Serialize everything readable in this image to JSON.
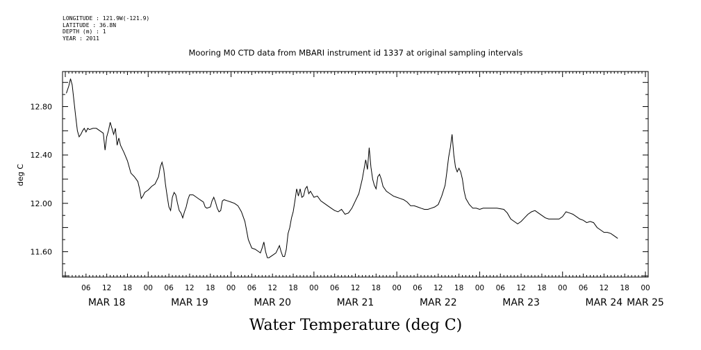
{
  "metadata": {
    "longitude": "LONGITUDE : 121.9W(-121.9)",
    "latitude": "LATITUDE : 36.8N",
    "depth": "DEPTH (m) : 1",
    "year": "YEAR : 2011"
  },
  "chart_data": {
    "type": "line",
    "title": "Mooring M0 CTD data from MBARI instrument id 1337 at original sampling intervals",
    "xlabel": "Water Temperature (deg C)",
    "ylabel": "deg C",
    "y_ticks": [
      "11.60",
      "12.00",
      "12.40",
      "12.80"
    ],
    "ylim": [
      11.39,
      13.09
    ],
    "xlim_hours": [
      0,
      168
    ],
    "x_hour_labels": [
      "06",
      "12",
      "18",
      "00",
      "06",
      "12",
      "18",
      "00",
      "06",
      "12",
      "18",
      "00",
      "06",
      "12",
      "18",
      "00",
      "06",
      "12",
      "18",
      "00",
      "06",
      "12",
      "18",
      "00",
      "06",
      "12",
      "18",
      "00"
    ],
    "x_date_labels": [
      "MAR 18",
      "MAR 19",
      "MAR 20",
      "MAR 21",
      "MAR 22",
      "MAR 23",
      "MAR 24",
      "MAR 25"
    ],
    "series": [
      {
        "values": [
          [
            0.3,
            12.91
          ],
          [
            1.0,
            12.97
          ],
          [
            1.5,
            13.03
          ],
          [
            2.0,
            12.98
          ],
          [
            2.5,
            12.85
          ],
          [
            3.0,
            12.72
          ],
          [
            3.5,
            12.6
          ],
          [
            4.0,
            12.55
          ],
          [
            4.5,
            12.57
          ],
          [
            5.0,
            12.6
          ],
          [
            5.5,
            12.62
          ],
          [
            6.0,
            12.59
          ],
          [
            6.5,
            12.62
          ],
          [
            7.0,
            12.61
          ],
          [
            8.0,
            12.62
          ],
          [
            9.0,
            12.62
          ],
          [
            10.0,
            12.6
          ],
          [
            11.0,
            12.58
          ],
          [
            11.5,
            12.44
          ],
          [
            12.0,
            12.55
          ],
          [
            12.5,
            12.6
          ],
          [
            13.0,
            12.67
          ],
          [
            13.5,
            12.62
          ],
          [
            14.0,
            12.57
          ],
          [
            14.5,
            12.62
          ],
          [
            15.0,
            12.48
          ],
          [
            15.5,
            12.54
          ],
          [
            16.0,
            12.48
          ],
          [
            17.0,
            12.42
          ],
          [
            18.0,
            12.35
          ],
          [
            19.0,
            12.25
          ],
          [
            20.0,
            12.22
          ],
          [
            21.0,
            12.18
          ],
          [
            21.5,
            12.12
          ],
          [
            22.0,
            12.04
          ],
          [
            22.5,
            12.06
          ],
          [
            23.0,
            12.09
          ],
          [
            24.0,
            12.11
          ],
          [
            25.0,
            12.14
          ],
          [
            26.0,
            12.16
          ],
          [
            27.0,
            12.22
          ],
          [
            27.5,
            12.3
          ],
          [
            28.0,
            12.34
          ],
          [
            28.5,
            12.28
          ],
          [
            29.0,
            12.16
          ],
          [
            29.5,
            12.06
          ],
          [
            30.0,
            11.97
          ],
          [
            30.5,
            11.94
          ],
          [
            31.0,
            12.05
          ],
          [
            31.5,
            12.09
          ],
          [
            32.0,
            12.07
          ],
          [
            32.5,
            12.0
          ],
          [
            33.0,
            11.94
          ],
          [
            33.5,
            11.92
          ],
          [
            34.0,
            11.88
          ],
          [
            34.5,
            11.93
          ],
          [
            35.0,
            11.97
          ],
          [
            35.5,
            12.03
          ],
          [
            36.0,
            12.07
          ],
          [
            37.0,
            12.07
          ],
          [
            38.0,
            12.05
          ],
          [
            39.0,
            12.03
          ],
          [
            40.0,
            12.01
          ],
          [
            40.5,
            11.97
          ],
          [
            41.0,
            11.96
          ],
          [
            42.0,
            11.97
          ],
          [
            42.5,
            12.02
          ],
          [
            43.0,
            12.05
          ],
          [
            43.5,
            12.01
          ],
          [
            44.0,
            11.96
          ],
          [
            44.5,
            11.93
          ],
          [
            45.0,
            11.94
          ],
          [
            45.5,
            12.02
          ],
          [
            46.0,
            12.03
          ],
          [
            47.0,
            12.02
          ],
          [
            48.0,
            12.01
          ],
          [
            49.0,
            12.0
          ],
          [
            50.0,
            11.98
          ],
          [
            51.0,
            11.93
          ],
          [
            52.0,
            11.85
          ],
          [
            53.0,
            11.7
          ],
          [
            54.0,
            11.63
          ],
          [
            55.0,
            11.62
          ],
          [
            56.0,
            11.6
          ],
          [
            56.5,
            11.59
          ],
          [
            57.0,
            11.63
          ],
          [
            57.5,
            11.68
          ],
          [
            58.0,
            11.6
          ],
          [
            58.5,
            11.55
          ],
          [
            59.0,
            11.55
          ],
          [
            60.0,
            11.57
          ],
          [
            61.0,
            11.59
          ],
          [
            62.0,
            11.65
          ],
          [
            62.5,
            11.6
          ],
          [
            63.0,
            11.56
          ],
          [
            63.5,
            11.56
          ],
          [
            64.0,
            11.62
          ],
          [
            64.5,
            11.75
          ],
          [
            65.0,
            11.8
          ],
          [
            65.5,
            11.88
          ],
          [
            66.0,
            11.93
          ],
          [
            66.5,
            12.02
          ],
          [
            67.0,
            12.12
          ],
          [
            67.5,
            12.06
          ],
          [
            68.0,
            12.12
          ],
          [
            68.5,
            12.05
          ],
          [
            69.0,
            12.06
          ],
          [
            69.5,
            12.12
          ],
          [
            70.0,
            12.14
          ],
          [
            70.5,
            12.08
          ],
          [
            71.0,
            12.1
          ],
          [
            72.0,
            12.05
          ],
          [
            73.0,
            12.06
          ],
          [
            74.0,
            12.02
          ],
          [
            75.0,
            12.0
          ],
          [
            76.0,
            11.98
          ],
          [
            77.0,
            11.96
          ],
          [
            78.0,
            11.94
          ],
          [
            79.0,
            11.93
          ],
          [
            80.0,
            11.95
          ],
          [
            81.0,
            11.91
          ],
          [
            82.0,
            11.92
          ],
          [
            83.0,
            11.96
          ],
          [
            84.0,
            12.02
          ],
          [
            85.0,
            12.08
          ],
          [
            86.0,
            12.2
          ],
          [
            86.5,
            12.28
          ],
          [
            87.0,
            12.36
          ],
          [
            87.5,
            12.28
          ],
          [
            88.0,
            12.46
          ],
          [
            88.5,
            12.3
          ],
          [
            89.0,
            12.2
          ],
          [
            89.5,
            12.15
          ],
          [
            90.0,
            12.12
          ],
          [
            90.5,
            12.22
          ],
          [
            91.0,
            12.24
          ],
          [
            91.5,
            12.2
          ],
          [
            92.0,
            12.14
          ],
          [
            93.0,
            12.1
          ],
          [
            94.0,
            12.08
          ],
          [
            95.0,
            12.06
          ],
          [
            96.0,
            12.05
          ],
          [
            97.0,
            12.04
          ],
          [
            98.0,
            12.03
          ],
          [
            99.0,
            12.01
          ],
          [
            100.0,
            11.98
          ],
          [
            101.0,
            11.98
          ],
          [
            102.0,
            11.97
          ],
          [
            103.0,
            11.96
          ],
          [
            104.0,
            11.95
          ],
          [
            105.0,
            11.95
          ],
          [
            106.0,
            11.96
          ],
          [
            107.0,
            11.97
          ],
          [
            108.0,
            11.99
          ],
          [
            109.0,
            12.06
          ],
          [
            110.0,
            12.15
          ],
          [
            110.5,
            12.26
          ],
          [
            111.0,
            12.38
          ],
          [
            111.5,
            12.46
          ],
          [
            112.0,
            12.57
          ],
          [
            112.5,
            12.4
          ],
          [
            113.0,
            12.3
          ],
          [
            113.5,
            12.26
          ],
          [
            114.0,
            12.29
          ],
          [
            114.5,
            12.26
          ],
          [
            115.0,
            12.2
          ],
          [
            115.5,
            12.1
          ],
          [
            116.0,
            12.04
          ],
          [
            117.0,
            11.99
          ],
          [
            118.0,
            11.96
          ],
          [
            119.0,
            11.96
          ],
          [
            120.0,
            11.95
          ],
          [
            121.0,
            11.96
          ],
          [
            123.0,
            11.96
          ],
          [
            125.0,
            11.96
          ],
          [
            127.0,
            11.95
          ],
          [
            128.0,
            11.92
          ],
          [
            129.0,
            11.87
          ],
          [
            130.0,
            11.85
          ],
          [
            131.0,
            11.83
          ],
          [
            132.0,
            11.85
          ],
          [
            133.0,
            11.88
          ],
          [
            134.0,
            11.91
          ],
          [
            135.0,
            11.93
          ],
          [
            136.0,
            11.94
          ],
          [
            137.0,
            11.92
          ],
          [
            138.0,
            11.9
          ],
          [
            139.0,
            11.88
          ],
          [
            140.0,
            11.87
          ],
          [
            142.0,
            11.87
          ],
          [
            143.0,
            11.87
          ],
          [
            144.0,
            11.89
          ],
          [
            145.0,
            11.93
          ],
          [
            146.0,
            11.92
          ],
          [
            147.0,
            11.91
          ],
          [
            148.0,
            11.89
          ],
          [
            149.0,
            11.87
          ],
          [
            150.0,
            11.86
          ],
          [
            151.0,
            11.84
          ],
          [
            152.0,
            11.85
          ],
          [
            153.0,
            11.84
          ],
          [
            154.0,
            11.8
          ],
          [
            155.0,
            11.78
          ],
          [
            156.0,
            11.76
          ],
          [
            157.0,
            11.76
          ],
          [
            158.0,
            11.75
          ],
          [
            159.0,
            11.73
          ],
          [
            160.0,
            11.71
          ]
        ]
      }
    ]
  }
}
